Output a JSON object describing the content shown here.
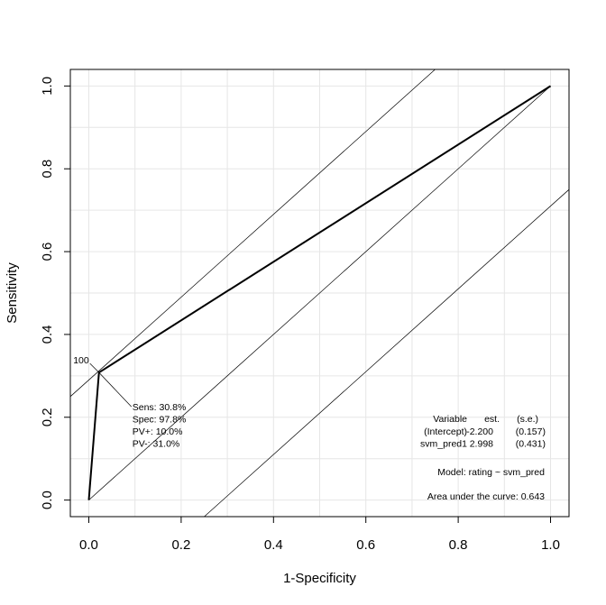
{
  "chart_data": {
    "type": "line",
    "title": "",
    "xlabel": "1-Specificity",
    "ylabel": "Sensitivity",
    "xlim": [
      -0.04,
      1.04
    ],
    "ylim": [
      -0.04,
      1.04
    ],
    "x_ticks": [
      "0.0",
      "0.2",
      "0.4",
      "0.6",
      "0.8",
      "1.0"
    ],
    "y_ticks": [
      "0.0",
      "0.2",
      "0.4",
      "0.6",
      "0.8",
      "1.0"
    ],
    "grid": true,
    "series": [
      {
        "x": [
          0.0,
          0.022,
          1.0
        ],
        "y": [
          0.0,
          0.308,
          1.0
        ]
      }
    ],
    "reference_lines": [
      {
        "x": [
          0.0,
          1.0
        ],
        "y": [
          0.0,
          1.0
        ]
      },
      {
        "x": [
          -0.04,
          0.75
        ],
        "y": [
          0.25,
          1.04
        ]
      },
      {
        "x": [
          0.25,
          1.04
        ],
        "y": [
          -0.04,
          0.75
        ]
      }
    ],
    "cutpoint": {
      "x": 0.022,
      "y": 0.308,
      "label": "100",
      "stats": [
        "Sens: 30.8%",
        "Spec: 97.8%",
        "PV+: 10.0%",
        "PV-: 31.0%"
      ]
    },
    "model_table": {
      "headers": [
        "Variable",
        "est.",
        "(s.e.)"
      ],
      "rows": [
        [
          "(Intercept)",
          "-2.200",
          "(0.157)"
        ],
        [
          "svm_pred1",
          "2.998",
          "(0.431)"
        ]
      ]
    },
    "model_text": "Model:  rating ~ svm_pred",
    "auc_text": "Area under the curve: 0.643"
  }
}
